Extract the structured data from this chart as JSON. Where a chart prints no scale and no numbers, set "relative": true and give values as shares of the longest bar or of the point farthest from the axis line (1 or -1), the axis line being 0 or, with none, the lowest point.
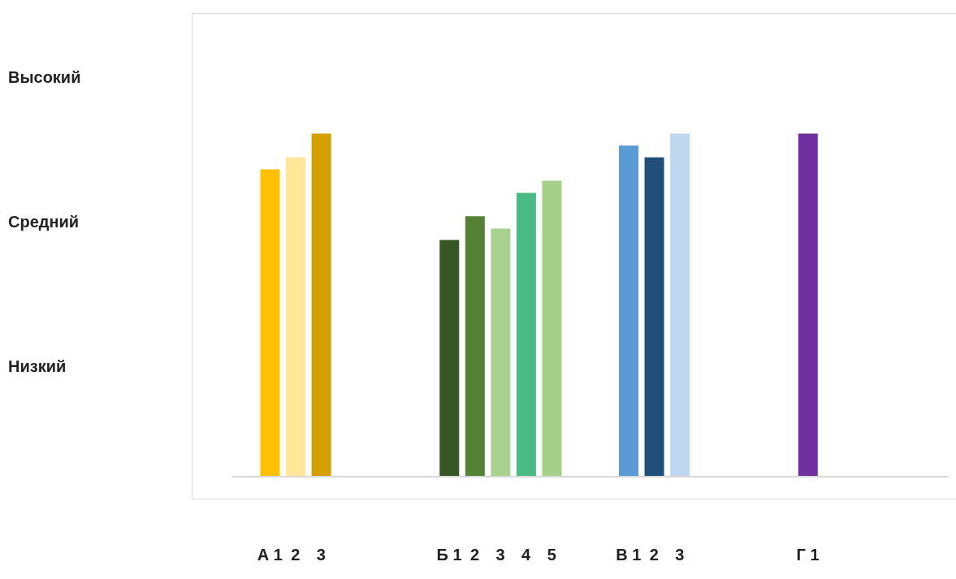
{
  "chart_data": {
    "type": "bar",
    "relative": true,
    "categories": [
      null,
      "А 1",
      "2",
      "3",
      null,
      null,
      null,
      null,
      "Б 1",
      "2",
      "3",
      "4",
      "5",
      null,
      null,
      "В 1",
      "2",
      "3",
      null,
      null,
      null,
      null,
      "Г 1",
      null,
      null,
      null,
      null,
      null
    ],
    "values": [
      null,
      0.896,
      0.931,
      1,
      null,
      null,
      null,
      null,
      0.69,
      0.759,
      0.723,
      0.827,
      0.863,
      null,
      null,
      0.965,
      0.931,
      1,
      null,
      null,
      null,
      null,
      1,
      null,
      null,
      null,
      null,
      null
    ],
    "colors": [
      "#ffffff",
      "#ffc000",
      "#ffe699",
      "#d4a000",
      "#ffffff",
      "#ffffff",
      "#ffffff",
      "#ffffff",
      "#375623",
      "#548235",
      "#a9d18e",
      "#4bbb86",
      "#a4d08a",
      "#ffffff",
      "#ffffff",
      "#5b9bd5",
      "#1f4e79",
      "#bdd7ee",
      "#ffffff",
      "#ffffff",
      "#ffffff",
      "#ffffff",
      "#7030a0",
      "#ffffff",
      "#ffffff",
      "#ffffff",
      "#ffffff",
      "#ffffff"
    ],
    "annotations": [
      "Высокий",
      "Средний",
      "Низкий"
    ]
  }
}
